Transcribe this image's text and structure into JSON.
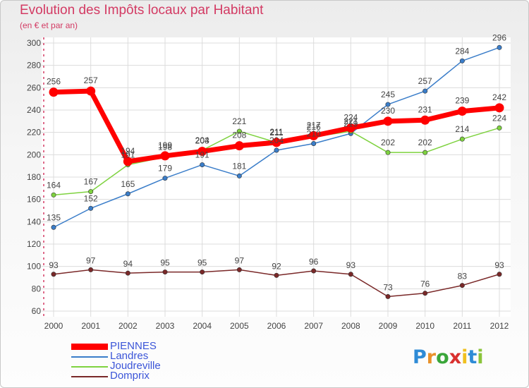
{
  "header": {
    "title": "Evolution des Impôts locaux par Habitant",
    "subtitle": "(en € et par an)"
  },
  "logo": {
    "text": "Proxiti",
    "letter_colors": [
      "#2e8bd6",
      "#e8912a",
      "#3aa63a",
      "#d9312f",
      "#f0c020",
      "#2e8bd6",
      "#8ac43a"
    ]
  },
  "chart_data": {
    "type": "line",
    "x": [
      2000,
      2001,
      2002,
      2003,
      2004,
      2005,
      2006,
      2007,
      2008,
      2009,
      2010,
      2011,
      2012
    ],
    "ylim": [
      60,
      300
    ],
    "yticks": [
      60,
      80,
      100,
      120,
      140,
      160,
      180,
      200,
      220,
      240,
      260,
      280,
      300
    ],
    "grid": true,
    "legend_position": "bottom-left",
    "series": [
      {
        "name": "PIENNES",
        "color": "#ff0000",
        "values": [
          256,
          257,
          194,
          199,
          203,
          208,
          211,
          217,
          224,
          230,
          231,
          239,
          242
        ]
      },
      {
        "name": "Landres",
        "color": "#3a7dc9",
        "values": [
          135,
          152,
          165,
          179,
          191,
          181,
          204,
          210,
          219,
          245,
          257,
          284,
          296
        ]
      },
      {
        "name": "Joudreville",
        "color": "#7ed23f",
        "values": [
          164,
          167,
          191,
          198,
          204,
          221,
          211,
          216,
          221,
          202,
          202,
          214,
          224
        ]
      },
      {
        "name": "Domprix",
        "color": "#7a2828",
        "values": [
          93,
          97,
          94,
          95,
          95,
          97,
          92,
          96,
          93,
          73,
          76,
          83,
          93
        ]
      }
    ]
  }
}
